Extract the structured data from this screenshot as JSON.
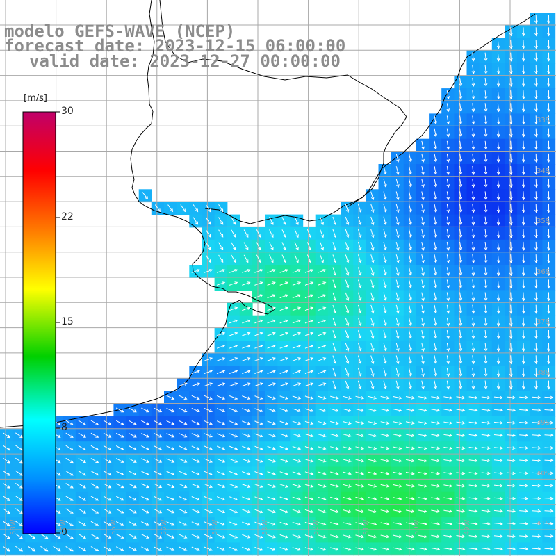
{
  "title": {
    "line1": "modelo GEFS-WAVE (NCEP)",
    "line2": "forecast date: 2023-12-15 06:00:00",
    "line3": "valid date: 2023-12-27 00:00:00"
  },
  "colorbar": {
    "unit": "[m/s]",
    "min": 0,
    "max": 30,
    "ticks": [
      "30",
      "22",
      "15",
      "8",
      "0"
    ],
    "colors": [
      "#c0006a",
      "#ff0000",
      "#ff8000",
      "#ffff00",
      "#00d000",
      "#00ffff",
      "#0080ff",
      "#0000ff"
    ]
  },
  "latitudes": [
    "33S",
    "34S",
    "35S",
    "36S",
    "37S",
    "38S",
    "39S",
    "40S",
    "41S"
  ],
  "longitudes": [
    "58W",
    "57W",
    "56W",
    "55W",
    "54W",
    "53W",
    "52W",
    "51W",
    "50W",
    "49W"
  ],
  "field_colors": {
    "land": "#ffffff",
    "grid": "#a8a8a8",
    "coast": "#000000",
    "arrows": "#ffffff",
    "deep_blue": "#0a3cf0",
    "cyan": "#1ad6f5",
    "green": "#20e860"
  }
}
